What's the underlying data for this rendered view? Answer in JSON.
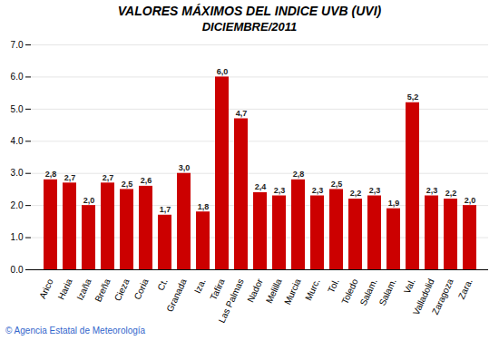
{
  "chart_data": {
    "type": "bar",
    "title": "VALORES MÁXIMOS DEL INDICE UVB (UVI)",
    "subtitle": "DICIEMBRE/2011",
    "annotations": [
      "© Agencia Estatal de Meteorología"
    ],
    "categories": [
      "Arico",
      "Haria",
      "Izaña",
      "Breña",
      "Cieza",
      "Coria",
      "Ct.",
      "Granada",
      "Iza.",
      "Tafira",
      "Las Palmas",
      "Nador",
      "Melilla",
      "Murcia",
      "Murc.",
      "Tol.",
      "Toledo",
      "Salam.",
      "Salam.",
      "Val.",
      "Valladolid",
      "Zaragoza",
      "Zara."
    ],
    "values": [
      2.8,
      2.7,
      2.0,
      2.7,
      2.5,
      2.6,
      1.7,
      3.0,
      1.8,
      6.0,
      4.7,
      2.4,
      2.3,
      2.8,
      2.3,
      2.5,
      2.2,
      2.3,
      1.9,
      5.2,
      2.3,
      2.2,
      2.0
    ],
    "value_labels": [
      "2,8",
      "2,7",
      "2,0",
      "2,7",
      "2,5",
      "2,6",
      "1,7",
      "3,0",
      "1,8",
      "6,0",
      "4,7",
      "2,4",
      "2,3",
      "2,8",
      "2,3",
      "2,5",
      "2,2",
      "2,3",
      "1,9",
      "5,2",
      "2,3",
      "2,2",
      "2,0"
    ],
    "data_labels": true,
    "color": "#cc0000",
    "ylim": [
      0,
      7
    ],
    "yticks": [
      0,
      1,
      2,
      3,
      4,
      5,
      6,
      7
    ],
    "grid": true
  }
}
